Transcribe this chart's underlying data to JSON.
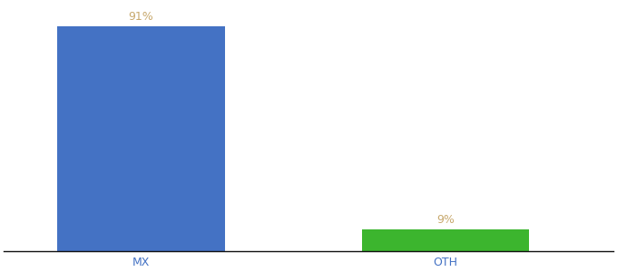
{
  "categories": [
    "MX",
    "OTH"
  ],
  "values": [
    91,
    9
  ],
  "bar_colors": [
    "#4472c4",
    "#3cb52e"
  ],
  "label_color": "#c8a96e",
  "background_color": "#ffffff",
  "ylim": [
    0,
    100
  ],
  "bar_width": 0.55,
  "label_fontsize": 9,
  "tick_fontsize": 9,
  "tick_color": "#4472c4"
}
